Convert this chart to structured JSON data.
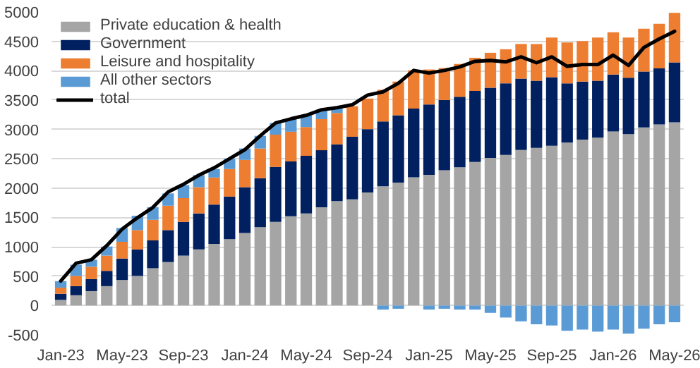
{
  "chart_data": {
    "type": "bar",
    "stacked": true,
    "categories": [
      "Jan-23",
      null,
      null,
      null,
      "May-23",
      null,
      null,
      null,
      "Sep-23",
      null,
      null,
      null,
      "Jan-24",
      null,
      null,
      null,
      "May-24",
      null,
      null,
      null,
      "Sep-24",
      null,
      null,
      null,
      "Jan-25",
      null,
      null,
      null,
      "May-25",
      null,
      null,
      null,
      "Sep-25",
      null,
      null,
      null,
      "Jan-26",
      null,
      null,
      null,
      "May-26"
    ],
    "series": [
      {
        "name": "Private education & health",
        "color": "#a5a5a5",
        "values": [
          95,
          175,
          245,
          330,
          435,
          505,
          635,
          740,
          850,
          955,
          1050,
          1130,
          1235,
          1335,
          1425,
          1520,
          1570,
          1675,
          1780,
          1810,
          1925,
          2030,
          2095,
          2185,
          2225,
          2305,
          2355,
          2445,
          2515,
          2565,
          2650,
          2685,
          2720,
          2775,
          2825,
          2860,
          2965,
          2920,
          3035,
          3085,
          3120
        ]
      },
      {
        "name": "Government",
        "color": "#002060",
        "values": [
          105,
          155,
          205,
          260,
          365,
          450,
          475,
          545,
          575,
          615,
          670,
          725,
          780,
          835,
          935,
          935,
          980,
          970,
          965,
          1065,
          1080,
          1105,
          1145,
          1170,
          1200,
          1195,
          1200,
          1210,
          1195,
          1220,
          1215,
          1145,
          1170,
          1010,
          990,
          970,
          970,
          960,
          950,
          955,
          1020
        ]
      },
      {
        "name": "Leisure and hospitality",
        "color": "#ed7d31",
        "values": [
          105,
          175,
          210,
          260,
          285,
          330,
          350,
          415,
          405,
          445,
          460,
          470,
          465,
          505,
          550,
          505,
          490,
          530,
          535,
          520,
          520,
          540,
          575,
          650,
          595,
          545,
          560,
          565,
          595,
          580,
          590,
          625,
          675,
          695,
          690,
          735,
          720,
          685,
          730,
          760,
          845
        ]
      },
      {
        "name": "All other sectors",
        "color": "#5b9bd5",
        "values": [
          110,
          190,
          120,
          155,
          235,
          245,
          215,
          210,
          220,
          205,
          145,
          175,
          195,
          215,
          200,
          215,
          200,
          160,
          90,
          null,
          null,
          -70,
          -55,
          0,
          -70,
          -55,
          -70,
          -70,
          -125,
          -205,
          -270,
          -320,
          -340,
          -430,
          -410,
          -445,
          -410,
          -480,
          -395,
          -320,
          -285
        ]
      },
      {
        "name": "total",
        "type": "line",
        "color": "#000000",
        "values": [
          417,
          720,
          780,
          1020,
          1300,
          1495,
          1670,
          1935,
          2065,
          2220,
          2345,
          2500,
          2655,
          2890,
          3110,
          3180,
          3240,
          3335,
          3370,
          3420,
          3585,
          3640,
          3785,
          4005,
          3960,
          4005,
          4065,
          4160,
          4175,
          4150,
          4235,
          4135,
          4235,
          4075,
          4105,
          4105,
          4265,
          4090,
          4395,
          4540,
          4670
        ]
      }
    ],
    "ylim": [
      -500,
      5000
    ],
    "yticks": [
      -500,
      0,
      500,
      1000,
      1500,
      2000,
      2500,
      3000,
      3500,
      4000,
      4500,
      5000
    ],
    "grid": "y",
    "legend": "top left"
  }
}
